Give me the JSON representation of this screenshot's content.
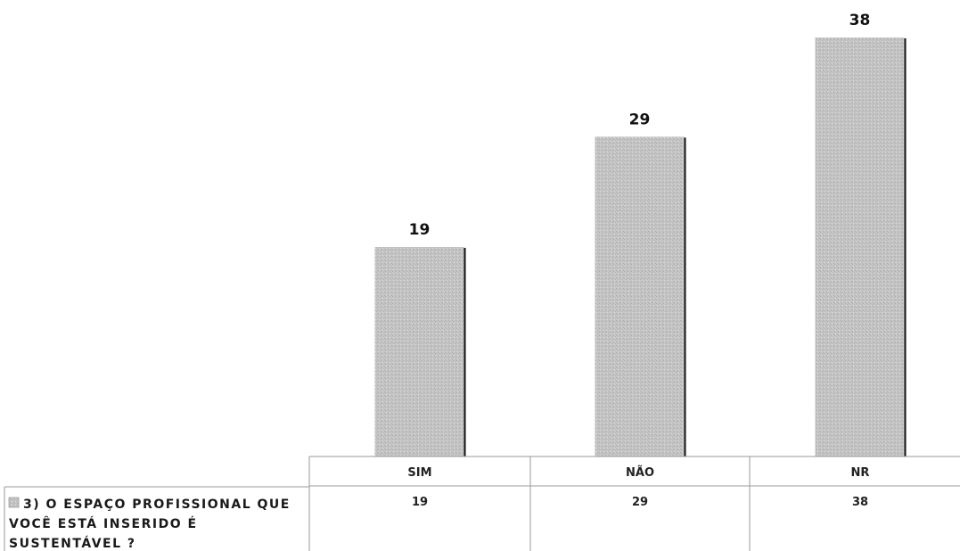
{
  "chart_data": {
    "type": "bar",
    "categories": [
      "SIM",
      "NÃO",
      "NR"
    ],
    "series": [
      {
        "name": "3) O ESPAÇO PROFISSIONAL QUE VOCÊ ESTÁ INSERIDO É SUSTENTÁVEL ?",
        "name_lines": [
          "3) O ESPAÇO PROFISSIONAL QUE",
          "VOCÊ ESTÁ INSERIDO É",
          "SUSTENTÁVEL ?"
        ],
        "values": [
          19,
          29,
          38
        ]
      }
    ],
    "data_labels": [
      "19",
      "29",
      "38"
    ],
    "table_values": [
      "19",
      "29",
      "38"
    ],
    "ylim": [
      0,
      38
    ],
    "grid": false,
    "legend": "data-table-left",
    "colors": {
      "bar_fill": "#c4c4c4",
      "bar_shadow": "#111111",
      "table_line": "#9a9a9a"
    }
  }
}
